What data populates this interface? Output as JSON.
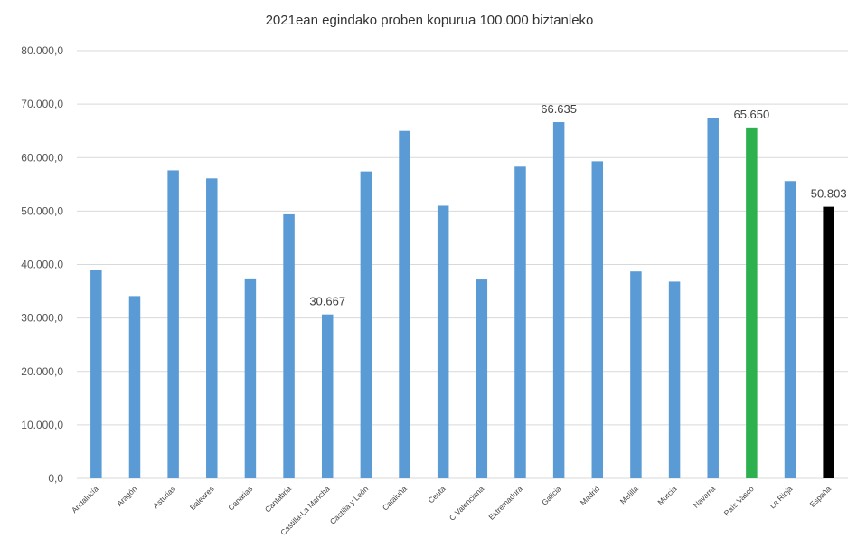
{
  "chart_data": {
    "type": "bar",
    "title": "2021ean egindako proben kopurua 100.000 biztanleko",
    "xlabel": "",
    "ylabel": "",
    "ylim": [
      0,
      80000
    ],
    "yticks": [
      0,
      10000,
      20000,
      30000,
      40000,
      50000,
      60000,
      70000,
      80000
    ],
    "ytick_labels": [
      "0,0",
      "10.000,0",
      "20.000,0",
      "30.000,0",
      "40.000,0",
      "50.000,0",
      "60.000,0",
      "70.000,0",
      "80.000,0"
    ],
    "grid": true,
    "legend": "none",
    "categories": [
      "Andalucía",
      "Aragón",
      "Asturias",
      "Baleares",
      "Canarias",
      "Cantabria",
      "Castilla-La Mancha",
      "Castilla y León",
      "Cataluña",
      "Ceuta",
      "C.Valenciana",
      "Extremadura",
      "Galicia",
      "Madrid",
      "Melilla",
      "Murcia",
      "Navarra",
      "País Vasco",
      "La Rioja",
      "España"
    ],
    "values": [
      38900,
      34100,
      57600,
      56100,
      37400,
      49400,
      30667,
      57400,
      65000,
      51000,
      37200,
      58300,
      66635,
      59300,
      38700,
      36800,
      67400,
      65650,
      55600,
      50803
    ],
    "data_labels": [
      {
        "category": "Castilla-La Mancha",
        "text": "30.667"
      },
      {
        "category": "Galicia",
        "text": "66.635"
      },
      {
        "category": "País Vasco",
        "text": "65.650"
      },
      {
        "category": "España",
        "text": "50.803"
      }
    ],
    "colors": {
      "default": "#5b9bd5",
      "highlight": {
        "País Vasco": "#2db14e",
        "España": "#000000"
      },
      "grid": "#d9d9d9"
    }
  }
}
